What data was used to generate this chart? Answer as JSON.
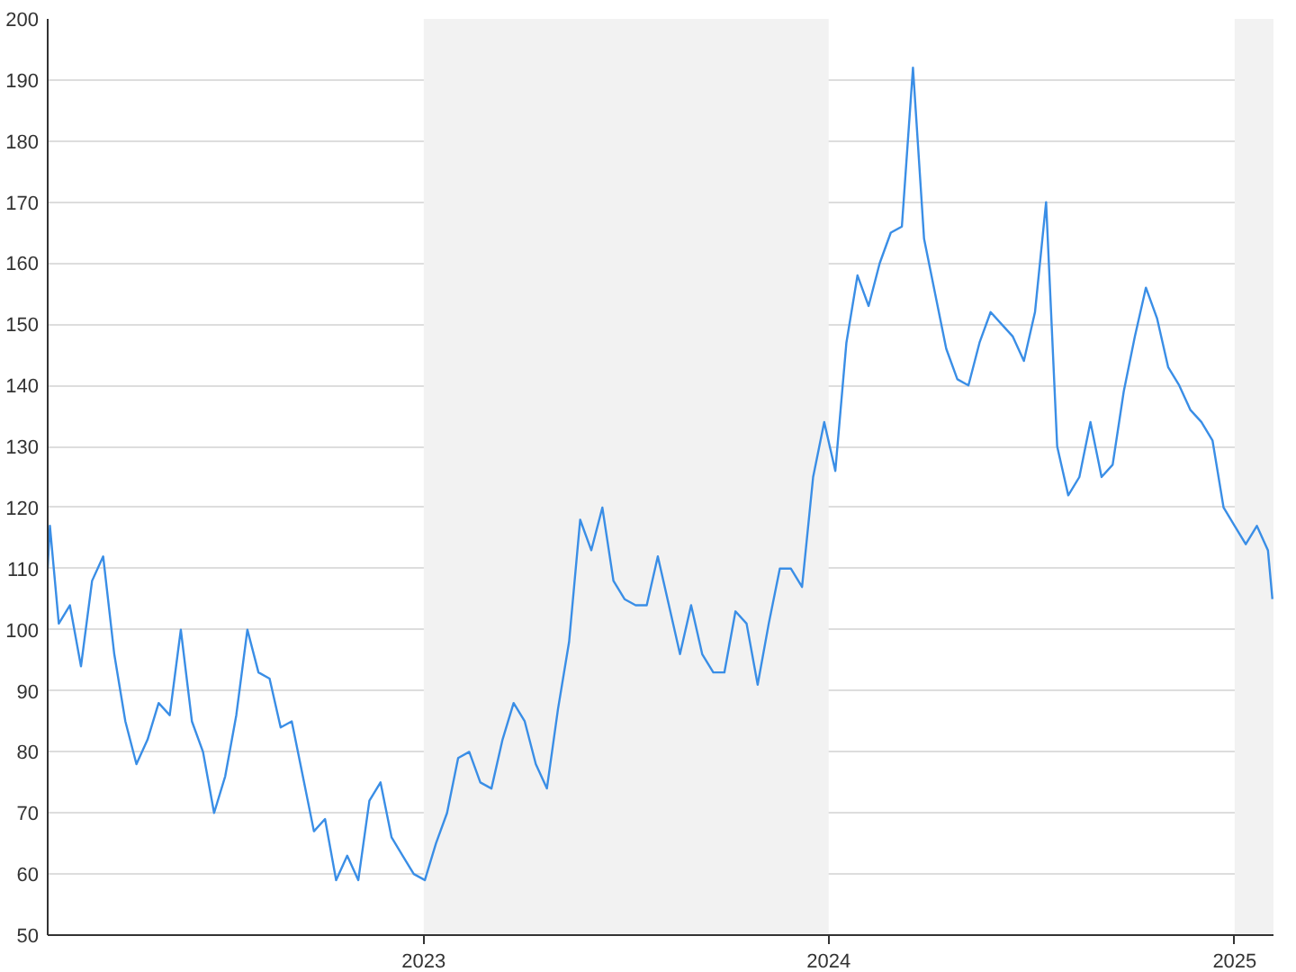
{
  "chart_data": {
    "type": "line",
    "x": [
      "2022-01-27",
      "2022-01-29",
      "2022-02-06",
      "2022-02-16",
      "2022-02-26",
      "2022-03-08",
      "2022-03-18",
      "2022-03-28",
      "2022-04-07",
      "2022-04-17",
      "2022-04-27",
      "2022-05-07",
      "2022-05-17",
      "2022-05-27",
      "2022-06-06",
      "2022-06-16",
      "2022-06-26",
      "2022-07-06",
      "2022-07-16",
      "2022-07-26",
      "2022-08-05",
      "2022-08-15",
      "2022-08-25",
      "2022-09-04",
      "2022-09-14",
      "2022-09-24",
      "2022-10-04",
      "2022-10-14",
      "2022-10-24",
      "2022-11-03",
      "2022-11-13",
      "2022-11-23",
      "2022-12-03",
      "2022-12-13",
      "2022-12-23",
      "2023-01-02",
      "2023-01-12",
      "2023-01-22",
      "2023-02-01",
      "2023-02-11",
      "2023-02-21",
      "2023-03-03",
      "2023-03-13",
      "2023-03-23",
      "2023-04-02",
      "2023-04-12",
      "2023-04-22",
      "2023-05-02",
      "2023-05-12",
      "2023-05-22",
      "2023-06-01",
      "2023-06-11",
      "2023-06-21",
      "2023-07-01",
      "2023-07-11",
      "2023-07-21",
      "2023-07-31",
      "2023-08-10",
      "2023-08-20",
      "2023-08-30",
      "2023-09-09",
      "2023-09-19",
      "2023-09-29",
      "2023-10-09",
      "2023-10-19",
      "2023-10-29",
      "2023-11-08",
      "2023-11-18",
      "2023-11-28",
      "2023-12-08",
      "2023-12-18",
      "2023-12-28",
      "2024-01-07",
      "2024-01-17",
      "2024-01-27",
      "2024-02-06",
      "2024-02-16",
      "2024-02-26",
      "2024-03-07",
      "2024-03-17",
      "2024-03-27",
      "2024-04-06",
      "2024-04-16",
      "2024-04-26",
      "2024-05-06",
      "2024-05-16",
      "2024-05-26",
      "2024-06-05",
      "2024-06-15",
      "2024-06-25",
      "2024-07-05",
      "2024-07-15",
      "2024-07-25",
      "2024-08-04",
      "2024-08-14",
      "2024-08-24",
      "2024-09-03",
      "2024-09-13",
      "2024-09-23",
      "2024-10-03",
      "2024-10-13",
      "2024-10-23",
      "2024-11-02",
      "2024-11-12",
      "2024-11-22",
      "2024-12-02",
      "2024-12-12",
      "2024-12-22",
      "2025-01-01",
      "2025-01-11",
      "2025-01-21",
      "2025-01-31",
      "2025-02-04"
    ],
    "series": [
      {
        "color": "#3a8ee6",
        "values": [
          110,
          117,
          101,
          104,
          94,
          108,
          112,
          96,
          85,
          78,
          82,
          88,
          86,
          100,
          85,
          80,
          70,
          76,
          86,
          100,
          93,
          92,
          84,
          85,
          76,
          67,
          69,
          59,
          63,
          59,
          72,
          75,
          66,
          63,
          60,
          59,
          65,
          70,
          79,
          80,
          75,
          74,
          82,
          88,
          85,
          78,
          74,
          87,
          98,
          118,
          113,
          120,
          108,
          105,
          104,
          104,
          112,
          104,
          96,
          104,
          96,
          93,
          93,
          103,
          101,
          91,
          101,
          110,
          110,
          107,
          125,
          134,
          126,
          147,
          158,
          153,
          160,
          165,
          166,
          192,
          164,
          155,
          146,
          141,
          140,
          147,
          152,
          150,
          148,
          144,
          152,
          170,
          130,
          122,
          125,
          134,
          125,
          127,
          139,
          148,
          156,
          151,
          143,
          140,
          136,
          134,
          131,
          120,
          117,
          114,
          117,
          113,
          105
        ]
      }
    ],
    "xlim": [
      "2022-01-27",
      "2025-02-05"
    ],
    "ylim": [
      50,
      200
    ],
    "xticks": [
      {
        "value": "2023-01-01",
        "label": "2023"
      },
      {
        "value": "2024-01-01",
        "label": "2024"
      },
      {
        "value": "2025-01-01",
        "label": "2025"
      }
    ],
    "yticks": [
      50,
      60,
      70,
      80,
      90,
      100,
      110,
      120,
      130,
      140,
      150,
      160,
      170,
      180,
      190,
      200
    ],
    "grid": "y",
    "bands": [
      {
        "axis": "x",
        "from": "2023-01-01",
        "to": "2024-01-01",
        "color": "#f2f2f2"
      },
      {
        "axis": "x",
        "from": "2025-01-01",
        "to": "2025-02-05",
        "color": "#f2f2f2"
      }
    ]
  }
}
